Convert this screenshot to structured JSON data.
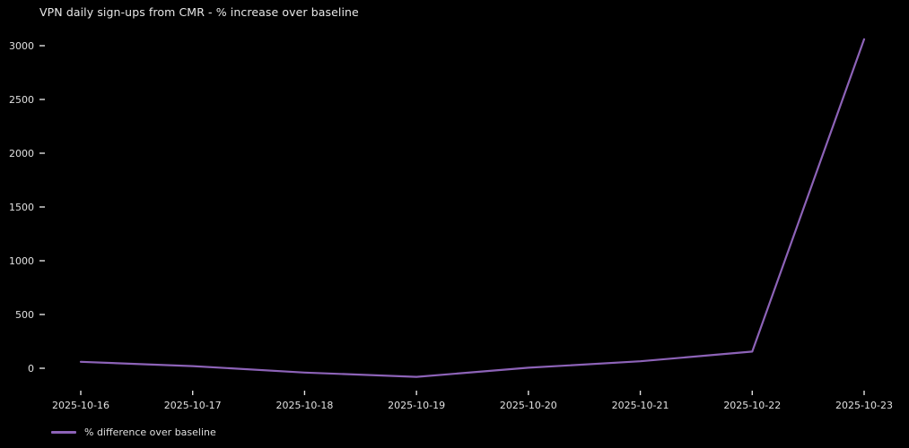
{
  "title": "VPN daily sign-ups from CMR - % increase over baseline",
  "legend": {
    "label": "% difference over baseline"
  },
  "colors": {
    "background": "#000000",
    "title_text": "#e8e8e8",
    "tick_text": "#e0e0e0",
    "line": "#8d63b8"
  },
  "chart_data": {
    "type": "line",
    "title": "VPN daily sign-ups from CMR - % increase over baseline",
    "x": [
      "2025-10-16",
      "2025-10-17",
      "2025-10-18",
      "2025-10-19",
      "2025-10-20",
      "2025-10-21",
      "2025-10-22",
      "2025-10-23"
    ],
    "series": [
      {
        "name": "% difference over baseline",
        "color": "#8d63b8",
        "values": [
          60,
          20,
          -40,
          -80,
          5,
          65,
          155,
          3060
        ]
      }
    ],
    "xlabel": "",
    "ylabel": "",
    "yticks": [
      0,
      500,
      1000,
      1500,
      2000,
      2500,
      3000
    ],
    "ylim": [
      -200,
      3110
    ],
    "grid": false,
    "legend_position": "lower-left",
    "background": "black"
  }
}
